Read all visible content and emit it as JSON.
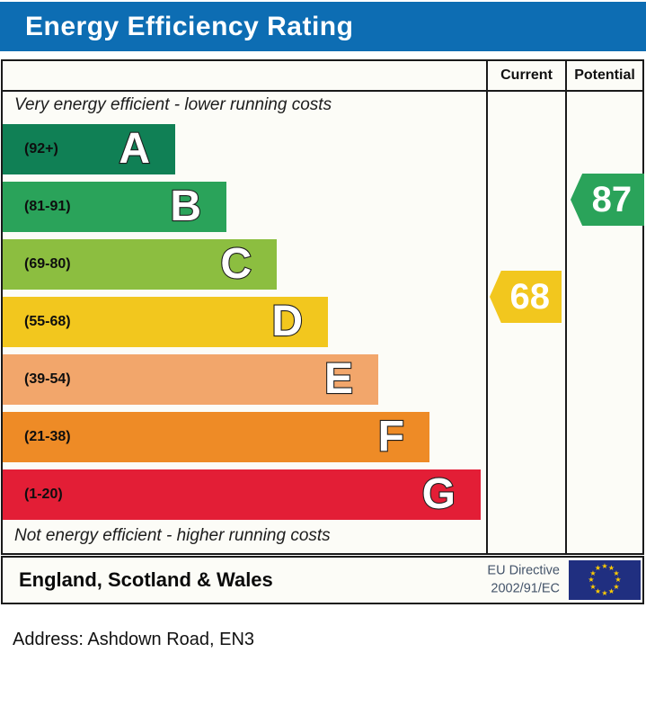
{
  "title": "Energy Efficiency Rating",
  "title_bar_color": "#0d6db3",
  "columns": {
    "current": "Current",
    "potential": "Potential"
  },
  "top_note": "Very energy efficient - lower running costs",
  "bottom_note": "Not energy efficient - higher running costs",
  "bands": [
    {
      "letter": "A",
      "range": "(92+)",
      "min": 92,
      "max": 100,
      "color": "#108055"
    },
    {
      "letter": "B",
      "range": "(81-91)",
      "min": 81,
      "max": 91,
      "color": "#2aa35a"
    },
    {
      "letter": "C",
      "range": "(69-80)",
      "min": 69,
      "max": 80,
      "color": "#8cbe40"
    },
    {
      "letter": "D",
      "range": "(55-68)",
      "min": 55,
      "max": 68,
      "color": "#f2c71e"
    },
    {
      "letter": "E",
      "range": "(39-54)",
      "min": 39,
      "max": 54,
      "color": "#f2a66b"
    },
    {
      "letter": "F",
      "range": "(21-38)",
      "min": 21,
      "max": 38,
      "color": "#ee8b26"
    },
    {
      "letter": "G",
      "range": "(1-20)",
      "min": 1,
      "max": 20,
      "color": "#e31e36"
    }
  ],
  "ratings": {
    "current": {
      "value": 68,
      "band": "D",
      "color": "#f2c71e"
    },
    "potential": {
      "value": 87,
      "band": "B",
      "color": "#2aa35a"
    }
  },
  "footer": {
    "region": "England, Scotland & Wales",
    "directive_line1": "EU Directive",
    "directive_line2": "2002/91/EC",
    "flag_color": "#202f80",
    "star_color": "#ffcc00"
  },
  "address_line": "Address: Ashdown Road, EN3",
  "chart_data": {
    "type": "bar",
    "title": "Energy Efficiency Rating",
    "categories": [
      "A",
      "B",
      "C",
      "D",
      "E",
      "F",
      "G"
    ],
    "band_ranges": [
      "92+",
      "81-91",
      "69-80",
      "55-68",
      "39-54",
      "21-38",
      "1-20"
    ],
    "band_colors": [
      "#108055",
      "#2aa35a",
      "#8cbe40",
      "#f2c71e",
      "#f2a66b",
      "#ee8b26",
      "#e31e36"
    ],
    "series": [
      {
        "name": "Current",
        "value": 68,
        "band": "D"
      },
      {
        "name": "Potential",
        "value": 87,
        "band": "B"
      }
    ],
    "top_annotation": "Very energy efficient - lower running costs",
    "bottom_annotation": "Not energy efficient - higher running costs",
    "footnote": "England, Scotland & Wales — EU Directive 2002/91/EC"
  }
}
